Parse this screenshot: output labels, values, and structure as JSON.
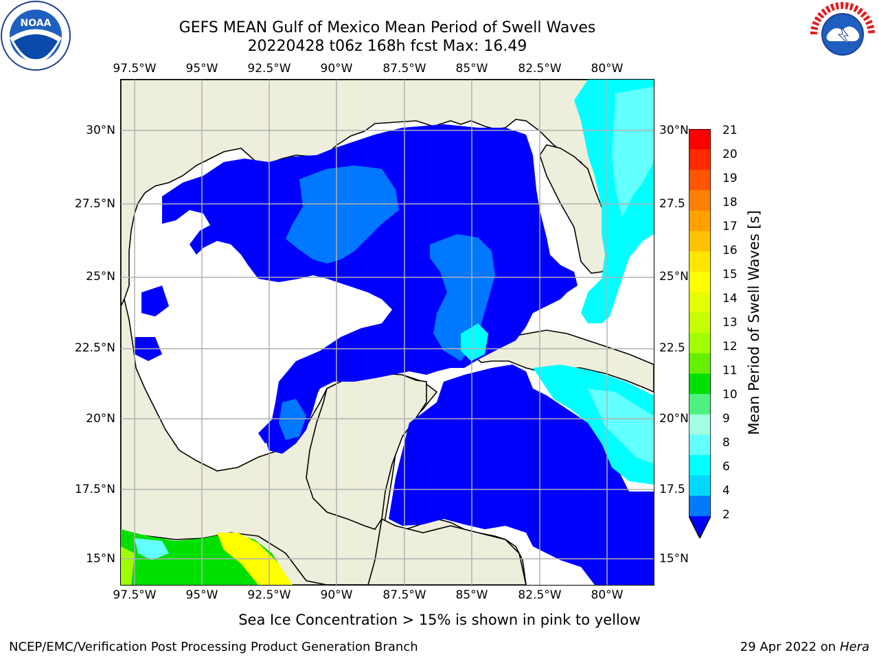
{
  "header": {
    "title_line1": "GEFS MEAN Gulf of Mexico Mean Period of Swell Waves",
    "title_line2": "20220428 t06z 168h fcst   Max: 16.49"
  },
  "logos": {
    "left": "noaa-logo-icon",
    "left_text": "NOAA",
    "right": "nws-logo-icon",
    "right_text": "NATIONAL WEATHER SERVICE"
  },
  "axes": {
    "lon_ticks": [
      "97.5°W",
      "95°W",
      "92.5°W",
      "90°W",
      "87.5°W",
      "85°W",
      "82.5°W",
      "80°W"
    ],
    "lat_ticks_left": [
      "30°N",
      "27.5°N",
      "25°N",
      "22.5°N",
      "20°N",
      "17.5°N",
      "15°N"
    ],
    "lat_ticks_right": [
      "30°N",
      "27.5",
      "25°N",
      "22.5",
      "20°N",
      "17.5",
      "15°N"
    ]
  },
  "colorbar": {
    "label": "Mean Period of Swell Waves [s]",
    "tick_labels": [
      "21",
      "20",
      "19",
      "18",
      "17",
      "16",
      "15",
      "14",
      "13",
      "12",
      "11",
      "10",
      "9",
      "8",
      "6",
      "4",
      "2"
    ],
    "colors_top_to_bottom": [
      "#ff0000",
      "#ff2a00",
      "#ff5500",
      "#ff8000",
      "#ffa000",
      "#ffc000",
      "#ffe600",
      "#ffff00",
      "#e6ff00",
      "#c8ff00",
      "#a0ff00",
      "#64f000",
      "#00e000",
      "#50f080",
      "#a0ffe0",
      "#64ffff",
      "#00ffff",
      "#00d8ff",
      "#0078ff"
    ],
    "extend_color": "#0000ff"
  },
  "footer": {
    "note": "Sea Ice Concentration > 15% is shown in pink to yellow",
    "credit": "NCEP/EMC/Verification Post Processing Product Generation Branch",
    "date": "29 Apr 2022 on ",
    "machine": "Hera"
  },
  "map_colors": {
    "land": "#eeeedc",
    "ocean_low": "#ffffff",
    "blue_2_4": "#0000ff",
    "blue_4_6": "#0078ff",
    "cyan_6_8": "#00ffff",
    "cyan_8_9": "#64ffff"
  }
}
